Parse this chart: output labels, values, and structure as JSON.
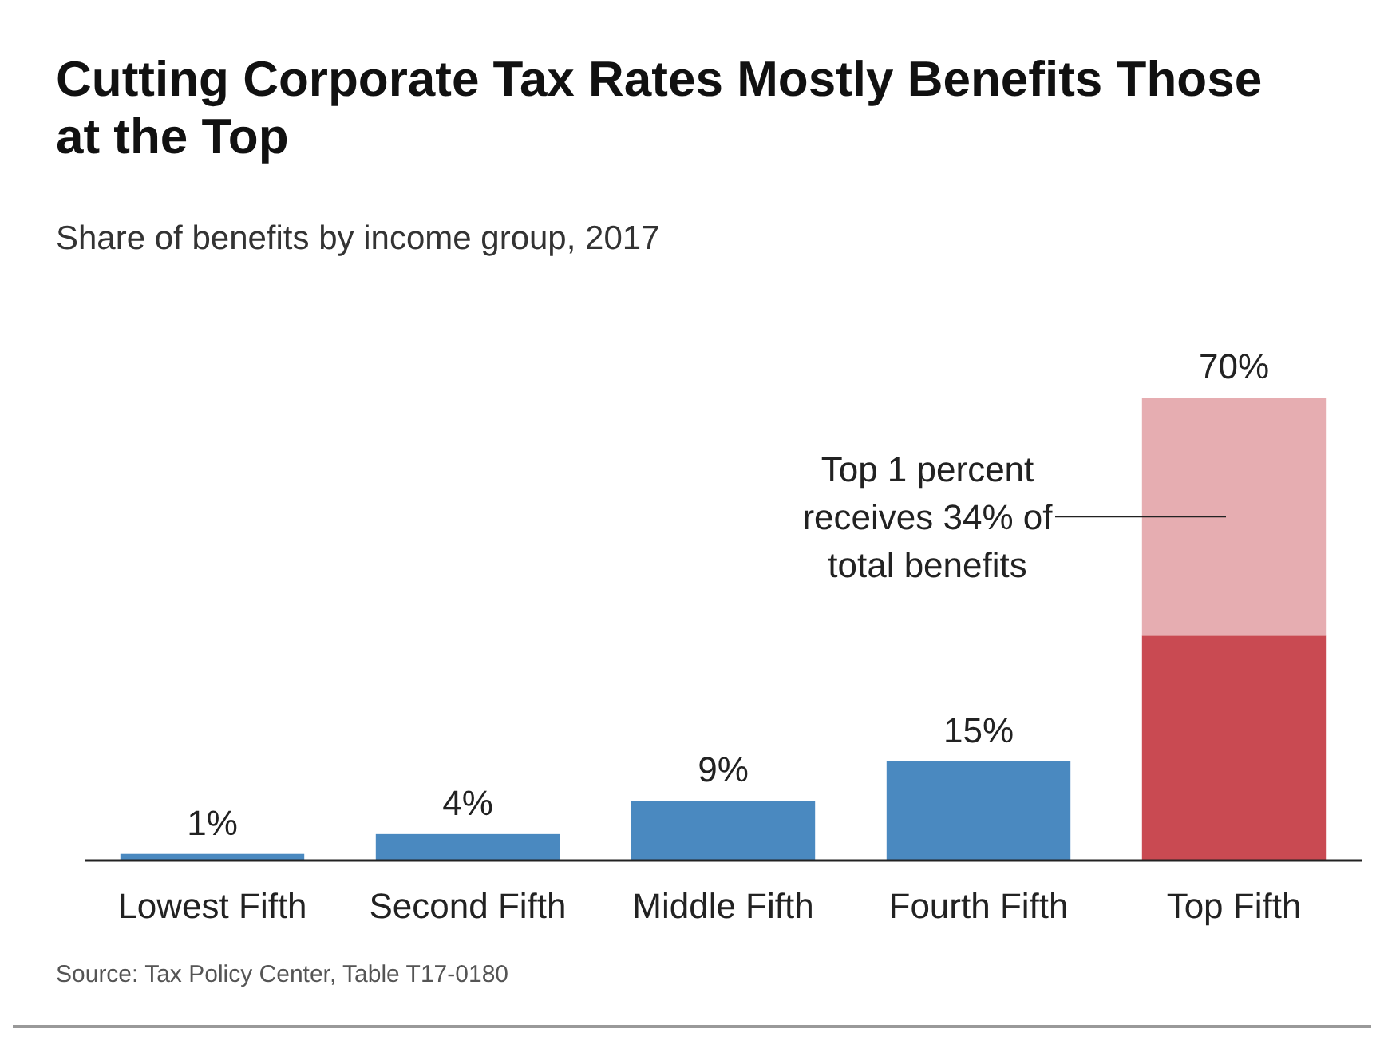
{
  "chart_data": {
    "type": "bar",
    "stacked": true,
    "title": "Cutting Corporate Tax Rates Mostly Benefits Those at the Top",
    "subtitle": "Share of benefits by income group, 2017",
    "categories": [
      "Lowest Fifth",
      "Second Fifth",
      "Middle Fifth",
      "Fourth Fifth",
      "Top Fifth"
    ],
    "series": [
      {
        "colors": [
          "#4a89c0",
          "#4a89c0",
          "#4a89c0",
          "#4a89c0",
          "#c94a52"
        ],
        "values": [
          1,
          4,
          9,
          15,
          34
        ],
        "value_labels": [
          "1%",
          "4%",
          "9%",
          "15%",
          null
        ]
      },
      {
        "color": "#e6adb1",
        "values": [
          null,
          null,
          null,
          null,
          36
        ]
      }
    ],
    "totals": [
      null,
      null,
      null,
      null,
      "70%"
    ],
    "annotations": [
      "Top 1 percent receives 34% of total benefits",
      "Source: Tax Policy Center, Table T17-0180"
    ]
  }
}
